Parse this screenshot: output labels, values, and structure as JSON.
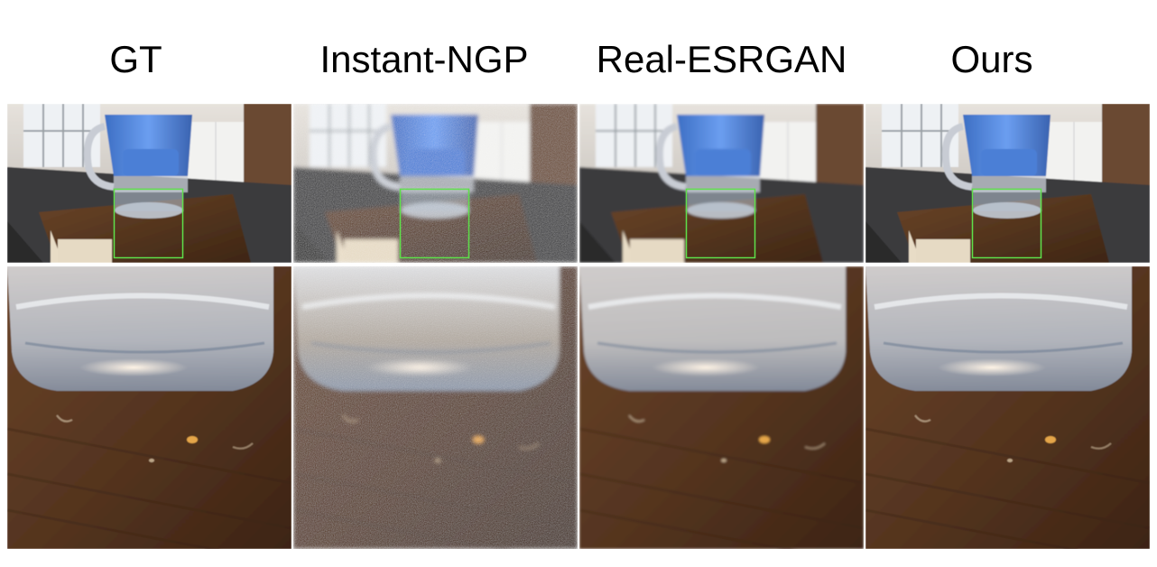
{
  "columns": [
    {
      "label": "GT",
      "variant": "sharp"
    },
    {
      "label": "Instant-NGP",
      "variant": "noisy"
    },
    {
      "label": "Real-ESRGAN",
      "variant": "smooth"
    },
    {
      "label": "Ours",
      "variant": "sharp"
    }
  ],
  "colors": {
    "crop_box": "#5ee04a",
    "pitcher_blue": "#5b8fe0",
    "wood": "#5a3a24",
    "floor": "#3a3a3a",
    "wall": "#d9d4cf"
  }
}
